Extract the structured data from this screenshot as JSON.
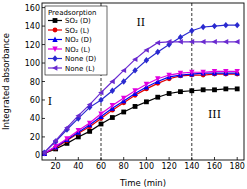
{
  "chart_data": {
    "type": "line",
    "x_label": "Time (min)",
    "y_label": "Integrated absorbance",
    "legend_title": "Preadsorption",
    "legend": "upper left",
    "x": [
      10,
      20,
      30,
      40,
      50,
      60,
      70,
      80,
      90,
      100,
      110,
      120,
      130,
      140,
      150,
      160,
      170,
      180
    ],
    "xlim": [
      8,
      186
    ],
    "xticks": [
      20,
      40,
      60,
      80,
      100,
      120,
      140,
      160,
      180
    ],
    "ylim": [
      -5,
      165
    ],
    "yticks": [
      0,
      20,
      40,
      60,
      80,
      100,
      120,
      140,
      160
    ],
    "reference_lines": [
      60,
      140
    ],
    "annotations": [
      {
        "text": "I",
        "x": 15,
        "y": 55
      },
      {
        "text": "II",
        "x": 95,
        "y": 140
      },
      {
        "text": "III",
        "x": 160,
        "y": 40
      }
    ],
    "series": [
      {
        "name": "SO₂ (D)",
        "color": "#000000",
        "marker": "square",
        "values": [
          2,
          7,
          13,
          20,
          26,
          34,
          41,
          47,
          53,
          58,
          63,
          67,
          69,
          70,
          71,
          71,
          72,
          72
        ]
      },
      {
        "name": "SO₂ (L)",
        "color": "#e00000",
        "marker": "circle",
        "values": [
          2,
          8,
          16,
          24,
          31,
          40,
          49,
          57,
          65,
          72,
          78,
          83,
          86,
          87,
          87,
          88,
          88,
          88
        ]
      },
      {
        "name": "NO₂ (D)",
        "color": "#0000ee",
        "marker": "triangle-up",
        "values": [
          2,
          9,
          17,
          25,
          33,
          42,
          51,
          59,
          67,
          74,
          80,
          85,
          87,
          88,
          89,
          89,
          89,
          89
        ]
      },
      {
        "name": "NO₂ (L)",
        "color": "#e000e0",
        "marker": "triangle-down",
        "values": [
          2,
          10,
          18,
          27,
          35,
          45,
          54,
          62,
          70,
          77,
          83,
          87,
          89,
          90,
          90,
          91,
          91,
          91
        ]
      },
      {
        "name": "None (D)",
        "color": "#2a2ad0",
        "marker": "diamond",
        "values": [
          3,
          15,
          28,
          40,
          52,
          60,
          70,
          80,
          92,
          103,
          112,
          120,
          128,
          135,
          139,
          140,
          141,
          141
        ]
      },
      {
        "name": "None (L)",
        "color": "#6a2ad0",
        "marker": "triangle-left",
        "values": [
          3,
          16,
          30,
          43,
          55,
          68,
          80,
          92,
          104,
          114,
          122,
          123,
          123,
          123,
          123,
          123,
          123,
          123
        ]
      }
    ]
  }
}
